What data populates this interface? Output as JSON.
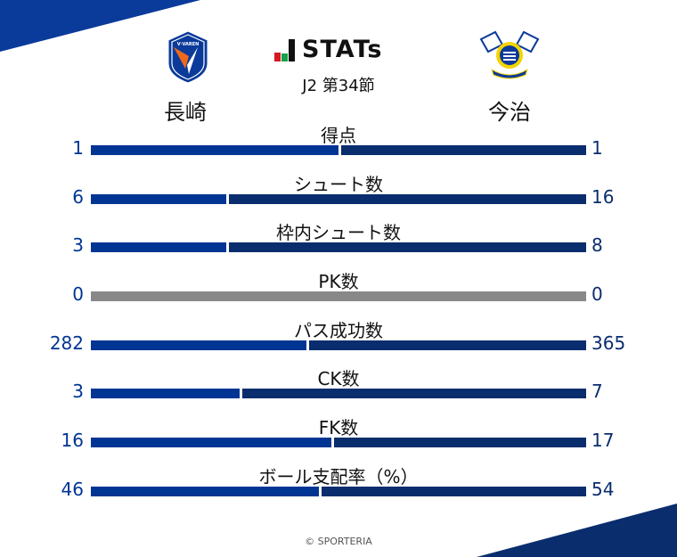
{
  "header": {
    "brand": "STATs",
    "round": "J2 第34節",
    "home": "長崎",
    "away": "今治",
    "home_logo_text": "V·VAREN"
  },
  "colors": {
    "home": "#003594",
    "away": "#0a2d6e",
    "neutral": "#888888"
  },
  "stats": [
    {
      "label": "得点",
      "home": 1,
      "away": 1
    },
    {
      "label": "シュート数",
      "home": 6,
      "away": 16
    },
    {
      "label": "枠内シュート数",
      "home": 3,
      "away": 8
    },
    {
      "label": "PK数",
      "home": 0,
      "away": 0
    },
    {
      "label": "パス成功数",
      "home": 282,
      "away": 365
    },
    {
      "label": "CK数",
      "home": 3,
      "away": 7
    },
    {
      "label": "FK数",
      "home": 16,
      "away": 17
    },
    {
      "label": "ボール支配率（%）",
      "home": 46,
      "away": 54
    }
  ],
  "footer": "© SPORTERIA"
}
